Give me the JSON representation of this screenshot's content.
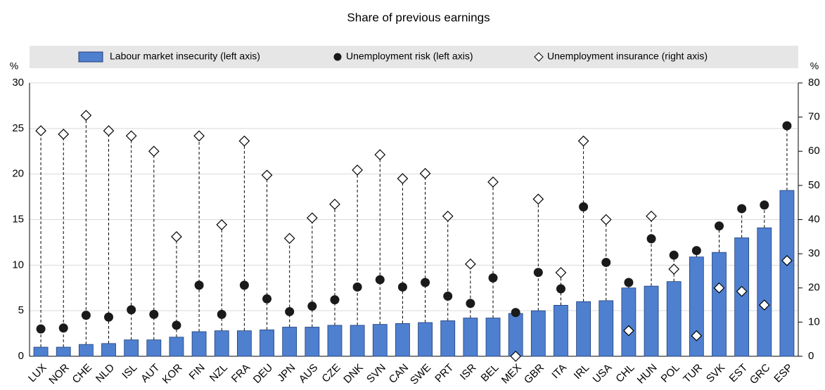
{
  "chart_data": {
    "type": "bar",
    "title": "Share of previous earnings",
    "y_label": "%",
    "y2_label": "%",
    "categories": [
      "LUX",
      "NOR",
      "CHE",
      "NLD",
      "ISL",
      "AUT",
      "KOR",
      "FIN",
      "NZL",
      "FRA",
      "DEU",
      "JPN",
      "AUS",
      "CZE",
      "DNK",
      "SVN",
      "CAN",
      "SWE",
      "PRT",
      "ISR",
      "BEL",
      "MEX",
      "GBR",
      "ITA",
      "IRL",
      "USA",
      "CHL",
      "HUN",
      "POL",
      "TUR",
      "SVK",
      "EST",
      "GRC",
      "ESP"
    ],
    "series": [
      {
        "name": "Labour market insecurity (left axis)",
        "type": "bar",
        "color": "#4f7fcf",
        "axis": "y",
        "values": [
          1.0,
          1.0,
          1.3,
          1.4,
          1.8,
          1.8,
          2.1,
          2.7,
          2.8,
          2.8,
          2.9,
          3.2,
          3.2,
          3.4,
          3.4,
          3.5,
          3.6,
          3.7,
          3.9,
          4.2,
          4.2,
          4.7,
          5.0,
          5.6,
          6.0,
          6.1,
          7.5,
          7.7,
          8.2,
          10.9,
          11.4,
          13.0,
          14.1,
          18.2
        ]
      },
      {
        "name": "Unemployment risk (left axis)",
        "type": "dot",
        "color": "#1a1a1a",
        "axis": "y",
        "values": [
          3.0,
          3.1,
          4.5,
          4.3,
          5.1,
          4.6,
          3.4,
          7.8,
          4.6,
          7.8,
          6.3,
          4.9,
          5.5,
          6.2,
          7.6,
          8.4,
          7.6,
          8.1,
          6.6,
          5.8,
          8.6,
          4.8,
          9.2,
          7.4,
          16.4,
          10.3,
          8.1,
          12.9,
          11.1,
          11.6,
          14.3,
          16.2,
          16.6,
          25.3
        ]
      },
      {
        "name": "Unemployment insurance (right axis)",
        "type": "diamond",
        "color": "#ffffff",
        "axis": "y2",
        "values": [
          66,
          65,
          70.5,
          66,
          64.5,
          60,
          35,
          64.5,
          38.5,
          63,
          53,
          34.5,
          40.5,
          44.5,
          54.5,
          59,
          52,
          53.5,
          41,
          27,
          51,
          0,
          46,
          24.5,
          63,
          40,
          7.5,
          41,
          25.5,
          6,
          20,
          19,
          15,
          28
        ]
      }
    ],
    "ylim": [
      0,
      30
    ],
    "yticks": [
      0,
      5,
      10,
      15,
      20,
      25,
      30
    ],
    "y2lim": [
      0,
      80
    ],
    "y2ticks": [
      0,
      10,
      20,
      30,
      40,
      50,
      60,
      70,
      80
    ],
    "grid": true
  }
}
